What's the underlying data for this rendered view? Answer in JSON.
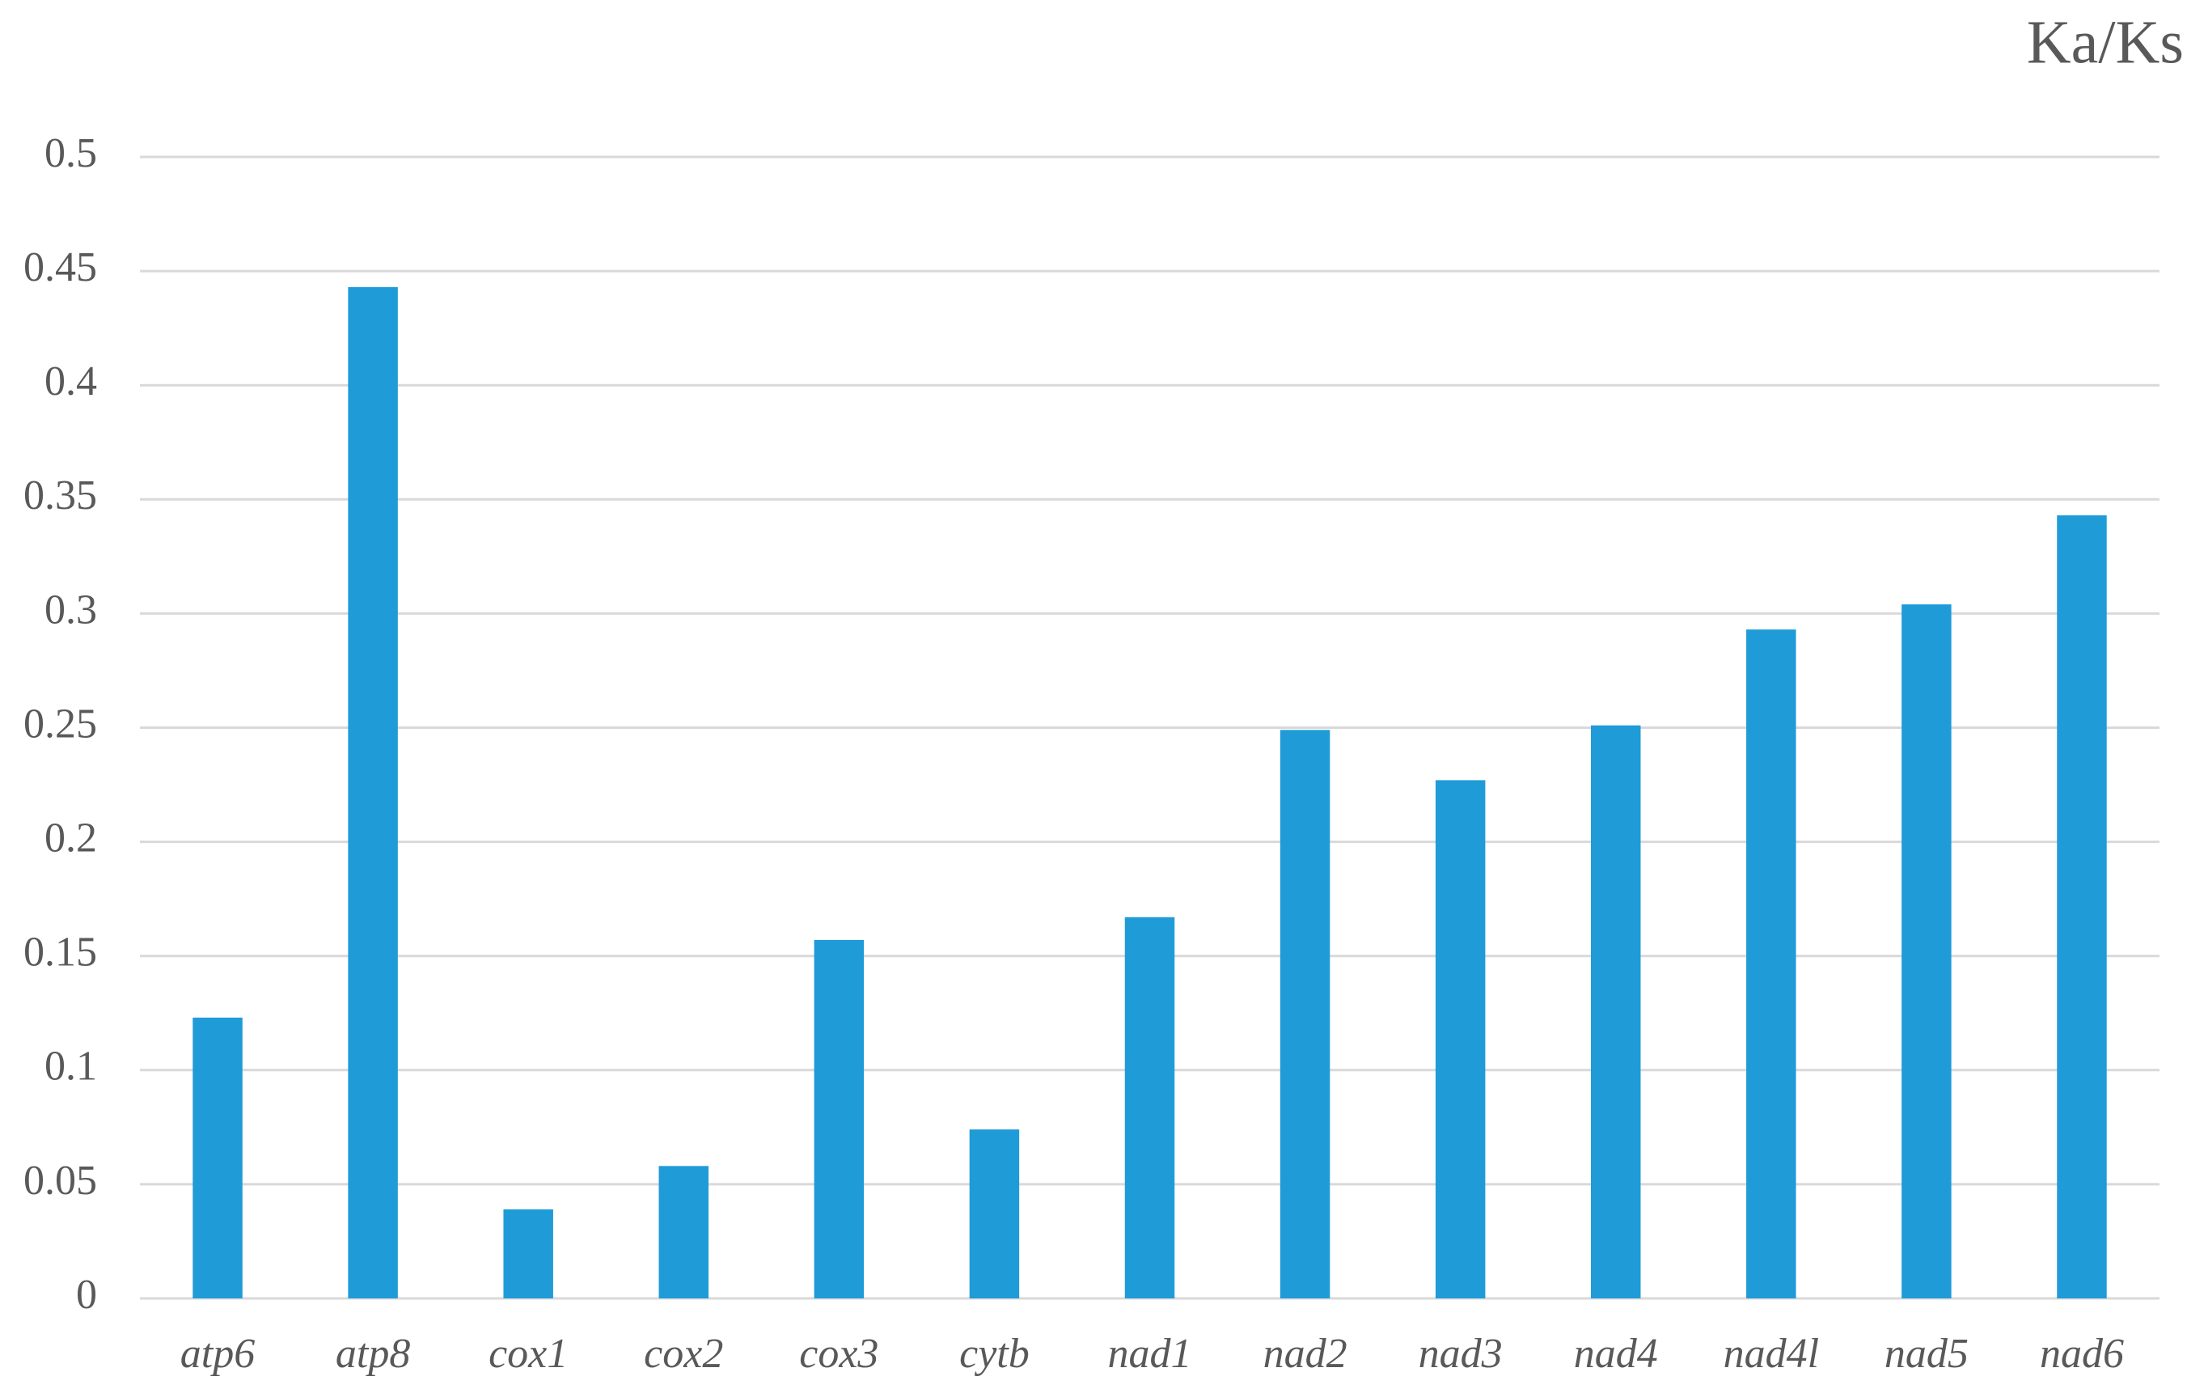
{
  "chart_data": {
    "type": "bar",
    "title": "Ka/Ks",
    "categories": [
      "atp6",
      "atp8",
      "cox1",
      "cox2",
      "cox3",
      "cytb",
      "nad1",
      "nad2",
      "nad3",
      "nad4",
      "nad4l",
      "nad5",
      "nad6"
    ],
    "values": [
      0.123,
      0.443,
      0.039,
      0.058,
      0.157,
      0.074,
      0.167,
      0.249,
      0.227,
      0.251,
      0.293,
      0.304,
      0.343
    ],
    "color": "#1f9bd8",
    "ylim": [
      0,
      0.5
    ],
    "yticks": [
      0,
      0.05,
      0.1,
      0.15,
      0.2,
      0.25,
      0.3,
      0.35,
      0.4,
      0.45,
      0.5
    ],
    "grid": true
  }
}
